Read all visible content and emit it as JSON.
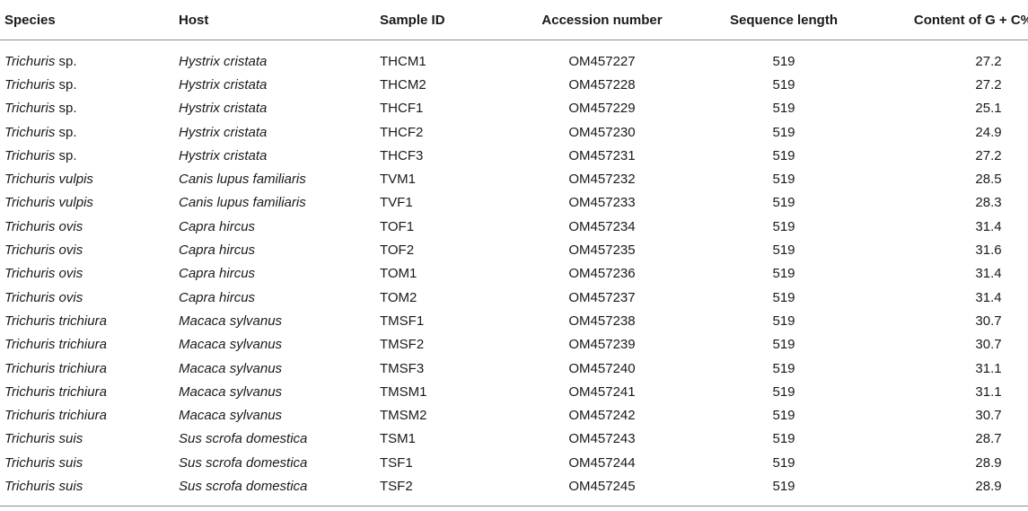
{
  "table": {
    "headers": {
      "species": "Species",
      "host": "Host",
      "sample_id": "Sample ID",
      "accession": "Accession number",
      "length": "Sequence length",
      "gc": "Content of G + C%"
    },
    "rows": [
      {
        "genus": "Trichuris",
        "epithet": " sp.",
        "epithet_italic": false,
        "host": "Hystrix cristata",
        "sample_id": "THCM1",
        "accession": "OM457227",
        "length": "519",
        "gc": "27.2"
      },
      {
        "genus": "Trichuris",
        "epithet": " sp.",
        "epithet_italic": false,
        "host": "Hystrix cristata",
        "sample_id": "THCM2",
        "accession": "OM457228",
        "length": "519",
        "gc": "27.2"
      },
      {
        "genus": "Trichuris",
        "epithet": " sp.",
        "epithet_italic": false,
        "host": "Hystrix cristata",
        "sample_id": "THCF1",
        "accession": "OM457229",
        "length": "519",
        "gc": "25.1"
      },
      {
        "genus": "Trichuris",
        "epithet": " sp.",
        "epithet_italic": false,
        "host": "Hystrix cristata",
        "sample_id": "THCF2",
        "accession": "OM457230",
        "length": "519",
        "gc": "24.9"
      },
      {
        "genus": "Trichuris",
        "epithet": " sp.",
        "epithet_italic": false,
        "host": "Hystrix cristata",
        "sample_id": "THCF3",
        "accession": "OM457231",
        "length": "519",
        "gc": "27.2"
      },
      {
        "genus": "Trichuris",
        "epithet": " vulpis",
        "epithet_italic": true,
        "host": "Canis lupus familiaris",
        "sample_id": "TVM1",
        "accession": "OM457232",
        "length": "519",
        "gc": "28.5"
      },
      {
        "genus": "Trichuris",
        "epithet": " vulpis",
        "epithet_italic": true,
        "host": "Canis lupus familiaris",
        "sample_id": "TVF1",
        "accession": "OM457233",
        "length": "519",
        "gc": "28.3"
      },
      {
        "genus": "Trichuris",
        "epithet": " ovis",
        "epithet_italic": true,
        "host": "Capra hircus",
        "sample_id": "TOF1",
        "accession": "OM457234",
        "length": "519",
        "gc": "31.4"
      },
      {
        "genus": "Trichuris",
        "epithet": " ovis",
        "epithet_italic": true,
        "host": "Capra hircus",
        "sample_id": "TOF2",
        "accession": "OM457235",
        "length": "519",
        "gc": "31.6"
      },
      {
        "genus": "Trichuris",
        "epithet": " ovis",
        "epithet_italic": true,
        "host": "Capra hircus",
        "sample_id": "TOM1",
        "accession": "OM457236",
        "length": "519",
        "gc": "31.4"
      },
      {
        "genus": "Trichuris",
        "epithet": " ovis",
        "epithet_italic": true,
        "host": "Capra hircus",
        "sample_id": "TOM2",
        "accession": "OM457237",
        "length": "519",
        "gc": "31.4"
      },
      {
        "genus": "Trichuris",
        "epithet": " trichiura",
        "epithet_italic": true,
        "host": "Macaca sylvanus",
        "sample_id": "TMSF1",
        "accession": "OM457238",
        "length": "519",
        "gc": "30.7"
      },
      {
        "genus": "Trichuris",
        "epithet": " trichiura",
        "epithet_italic": true,
        "host": "Macaca sylvanus",
        "sample_id": "TMSF2",
        "accession": "OM457239",
        "length": "519",
        "gc": "30.7"
      },
      {
        "genus": "Trichuris",
        "epithet": " trichiura",
        "epithet_italic": true,
        "host": "Macaca sylvanus",
        "sample_id": "TMSF3",
        "accession": "OM457240",
        "length": "519",
        "gc": "31.1"
      },
      {
        "genus": "Trichuris",
        "epithet": " trichiura",
        "epithet_italic": true,
        "host": "Macaca sylvanus",
        "sample_id": "TMSM1",
        "accession": "OM457241",
        "length": "519",
        "gc": "31.1"
      },
      {
        "genus": "Trichuris",
        "epithet": " trichiura",
        "epithet_italic": true,
        "host": "Macaca sylvanus",
        "sample_id": "TMSM2",
        "accession": "OM457242",
        "length": "519",
        "gc": "30.7"
      },
      {
        "genus": "Trichuris",
        "epithet": " suis",
        "epithet_italic": true,
        "host": "Sus scrofa domestica",
        "sample_id": "TSM1",
        "accession": "OM457243",
        "length": "519",
        "gc": "28.7"
      },
      {
        "genus": "Trichuris",
        "epithet": " suis",
        "epithet_italic": true,
        "host": "Sus scrofa domestica",
        "sample_id": "TSF1",
        "accession": "OM457244",
        "length": "519",
        "gc": "28.9"
      },
      {
        "genus": "Trichuris",
        "epithet": " suis",
        "epithet_italic": true,
        "host": "Sus scrofa domestica",
        "sample_id": "TSF2",
        "accession": "OM457245",
        "length": "519",
        "gc": "28.9"
      }
    ]
  }
}
